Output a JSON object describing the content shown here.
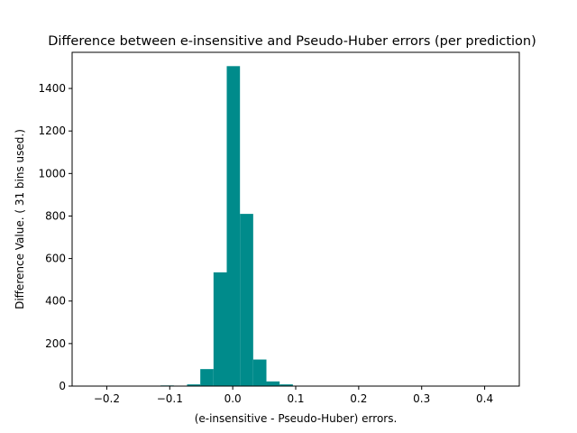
{
  "chart_data": {
    "type": "bar",
    "title": "Difference between  e-insensitive and Pseudo-Huber errors (per prediction)",
    "xlabel": "(e-insensitive - Pseudo-Huber) errors.",
    "ylabel": "Difference Value. ( 31 bins used.)",
    "xlim": [
      -0.255,
      0.455
    ],
    "ylim": [
      0,
      1570
    ],
    "xticks": [
      -0.2,
      -0.1,
      0.0,
      0.1,
      0.2,
      0.3,
      0.4
    ],
    "xtick_labels": [
      "−0.2",
      "−0.1",
      "0.0",
      "0.1",
      "0.2",
      "0.3",
      "0.4"
    ],
    "yticks": [
      0,
      200,
      400,
      600,
      800,
      1000,
      1200,
      1400
    ],
    "ytick_labels": [
      "0",
      "200",
      "400",
      "600",
      "800",
      "1000",
      "1200",
      "1400"
    ],
    "bar_color": "#008b8b",
    "bins": [
      {
        "x0": -0.1145,
        "x1": -0.0935,
        "count": 3
      },
      {
        "x0": -0.0935,
        "x1": -0.0725,
        "count": 2
      },
      {
        "x0": -0.0725,
        "x1": -0.0515,
        "count": 8
      },
      {
        "x0": -0.0515,
        "x1": -0.0305,
        "count": 80
      },
      {
        "x0": -0.0305,
        "x1": -0.0095,
        "count": 535
      },
      {
        "x0": -0.0095,
        "x1": 0.0115,
        "count": 1505
      },
      {
        "x0": 0.0115,
        "x1": 0.0325,
        "count": 810
      },
      {
        "x0": 0.0325,
        "x1": 0.0535,
        "count": 125
      },
      {
        "x0": 0.0535,
        "x1": 0.0745,
        "count": 22
      },
      {
        "x0": 0.0745,
        "x1": 0.0955,
        "count": 8
      }
    ]
  }
}
